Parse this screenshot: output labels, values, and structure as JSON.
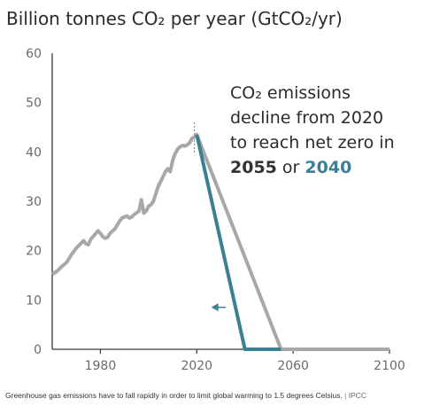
{
  "chart_data": {
    "type": "line",
    "title": "Billion tonnes CO₂ per year (GtCO₂/yr)",
    "xlabel": "",
    "ylabel": "",
    "xlim": [
      1960,
      2100
    ],
    "ylim": [
      0,
      60
    ],
    "x_ticks": [
      1980,
      2020,
      2060,
      2100
    ],
    "y_ticks": [
      0,
      10,
      20,
      30,
      40,
      50,
      60
    ],
    "grid": false,
    "series": [
      {
        "name": "",
        "color": "#a8a8a8",
        "points": [
          [
            1960,
            15.2
          ],
          [
            1962,
            15.8
          ],
          [
            1964,
            16.8
          ],
          [
            1966,
            17.6
          ],
          [
            1968,
            19.2
          ],
          [
            1970,
            20.5
          ],
          [
            1972,
            21.5
          ],
          [
            1973,
            22.0
          ],
          [
            1974,
            21.4
          ],
          [
            1975,
            21.2
          ],
          [
            1976,
            22.3
          ],
          [
            1978,
            23.4
          ],
          [
            1979,
            24.0
          ],
          [
            1980,
            23.5
          ],
          [
            1981,
            22.8
          ],
          [
            1982,
            22.5
          ],
          [
            1983,
            22.7
          ],
          [
            1984,
            23.5
          ],
          [
            1986,
            24.4
          ],
          [
            1988,
            26.0
          ],
          [
            1989,
            26.6
          ],
          [
            1990,
            26.8
          ],
          [
            1991,
            27.0
          ],
          [
            1992,
            26.6
          ],
          [
            1993,
            26.8
          ],
          [
            1994,
            27.3
          ],
          [
            1996,
            28.0
          ],
          [
            1997,
            30.3
          ],
          [
            1998,
            27.6
          ],
          [
            1999,
            28.0
          ],
          [
            2000,
            29.0
          ],
          [
            2001,
            29.3
          ],
          [
            2002,
            30.0
          ],
          [
            2003,
            31.5
          ],
          [
            2004,
            33.0
          ],
          [
            2005,
            34.0
          ],
          [
            2006,
            35.0
          ],
          [
            2007,
            36.0
          ],
          [
            2008,
            36.6
          ],
          [
            2009,
            36.0
          ],
          [
            2010,
            38.3
          ],
          [
            2011,
            39.6
          ],
          [
            2012,
            40.5
          ],
          [
            2013,
            41.0
          ],
          [
            2014,
            41.3
          ],
          [
            2015,
            41.2
          ],
          [
            2016,
            41.4
          ],
          [
            2017,
            41.8
          ],
          [
            2018,
            42.7
          ],
          [
            2019,
            43.0
          ],
          [
            2020,
            43.5
          ],
          [
            2055,
            0
          ],
          [
            2100,
            0
          ]
        ]
      },
      {
        "name": "",
        "color": "#3d7f95",
        "points": [
          [
            2020,
            43.5
          ],
          [
            2040,
            0
          ],
          [
            2055,
            0
          ]
        ]
      }
    ],
    "annotation": {
      "line1": "CO₂ emissions",
      "line2": "decline from 2020",
      "line3": "to reach net zero in",
      "year_a": "2055",
      "connector": " or ",
      "year_b": "2040"
    },
    "marker_year": 2019,
    "arrow": {
      "from_x": 2032,
      "to_x": 2026,
      "y": 8.5
    }
  },
  "caption": {
    "text": "Greenhouse gas emissions have to fall rapidly in order to limit global warming to 1.5 degrees Celsius.",
    "separator": " | ",
    "source": "IPCC"
  },
  "colors": {
    "axis": "#3a3a3a",
    "tick": "#6a6a6a",
    "grey_line": "#a8a8a8",
    "teal_line": "#3d7f95",
    "text": "#2b2b2b"
  }
}
